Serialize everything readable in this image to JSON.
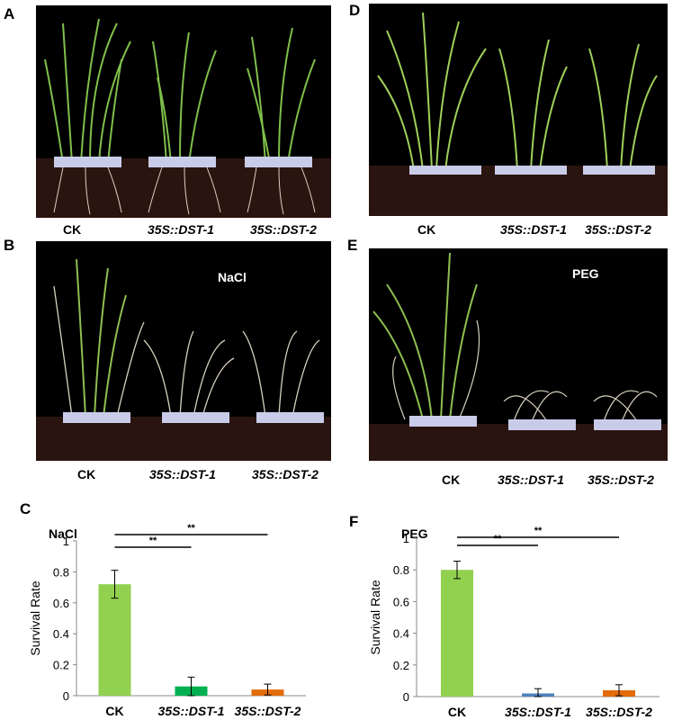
{
  "panels": {
    "A": {
      "letter": "A",
      "labels": [
        "CK",
        "35S::DST-1",
        "35S::DST-2"
      ]
    },
    "B": {
      "letter": "B",
      "treatment": "NaCl",
      "labels": [
        "CK",
        "35S::DST-1",
        "35S::DST-2"
      ]
    },
    "C": {
      "letter": "C"
    },
    "D": {
      "letter": "D",
      "labels": [
        "CK",
        "35S::DST-1",
        "35S::DST-2"
      ]
    },
    "E": {
      "letter": "E",
      "treatment": "PEG",
      "labels": [
        "CK",
        "35S::DST-1",
        "35S::DST-2"
      ]
    },
    "F": {
      "letter": "F"
    }
  },
  "colors": {
    "ck": "#92d050",
    "dst1_nacl": "#00b050",
    "dst1_peg": "#4f81bd",
    "dst2": "#e36c0a"
  },
  "chart_data": [
    {
      "type": "bar",
      "title": "NaCl",
      "ylabel": "Survival Rate",
      "xlabel": "",
      "categories": [
        "CK",
        "35S::DST-1",
        "35S::DST-2"
      ],
      "values": [
        0.72,
        0.06,
        0.04
      ],
      "errors": [
        0.09,
        0.06,
        0.035
      ],
      "ylim": [
        0,
        1
      ],
      "yticks": [
        "0",
        "0.2",
        "0.4",
        "0.6",
        "0.8",
        "1"
      ],
      "significance": [
        "**",
        "**"
      ],
      "bar_colors": [
        "#92d050",
        "#00b050",
        "#e36c0a"
      ],
      "grid": false
    },
    {
      "type": "bar",
      "title": "PEG",
      "ylabel": "Survival Rate",
      "xlabel": "",
      "categories": [
        "CK",
        "35S::DST-1",
        "35S::DST-2"
      ],
      "values": [
        0.8,
        0.02,
        0.04
      ],
      "errors": [
        0.055,
        0.03,
        0.035
      ],
      "ylim": [
        0,
        1
      ],
      "yticks": [
        "0",
        "0.2",
        "0.4",
        "0.6",
        "0.8",
        "1"
      ],
      "significance": [
        "**",
        "**"
      ],
      "bar_colors": [
        "#92d050",
        "#4f81bd",
        "#e36c0a"
      ],
      "grid": false
    }
  ]
}
